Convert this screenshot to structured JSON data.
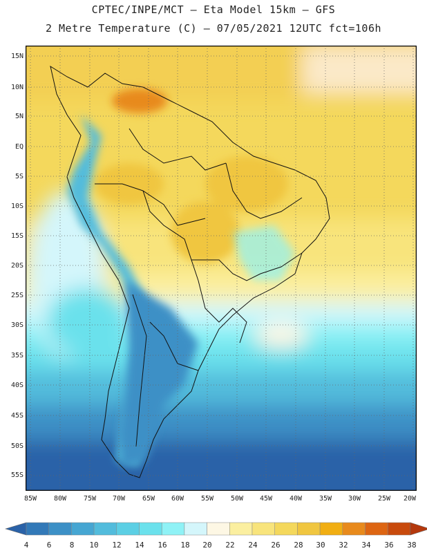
{
  "header": {
    "line1": "CPTEC/INPE/MCT –  Eta Model 15km – GFS",
    "line2": "2 Metre Temperature (C) – 07/05/2021 12UTC fct=106h"
  },
  "map": {
    "lat_labels": [
      "15N",
      "10N",
      "5N",
      "EQ",
      "5S",
      "10S",
      "15S",
      "20S",
      "25S",
      "30S",
      "35S",
      "40S",
      "45S",
      "50S",
      "55S"
    ],
    "lon_labels": [
      "85W",
      "80W",
      "75W",
      "70W",
      "65W",
      "60W",
      "55W",
      "50W",
      "45W",
      "40W",
      "35W",
      "30W",
      "25W",
      "20W"
    ]
  },
  "colorbar": {
    "labels": [
      "4",
      "6",
      "8",
      "10",
      "12",
      "14",
      "16",
      "18",
      "20",
      "22",
      "24",
      "26",
      "28",
      "30",
      "32",
      "34",
      "36",
      "38"
    ],
    "colors": [
      "#2a62a8",
      "#3279b8",
      "#3c90c6",
      "#46a6d2",
      "#52bcdc",
      "#5ccfe4",
      "#6be1ec",
      "#8ff2f6",
      "#d4f6fb",
      "#fdf7e4",
      "#fbefa0",
      "#f8e47c",
      "#f4d85c",
      "#f0c640",
      "#f1ae12",
      "#e88a1c",
      "#dd6512",
      "#c84a0c",
      "#b4380c"
    ]
  }
}
